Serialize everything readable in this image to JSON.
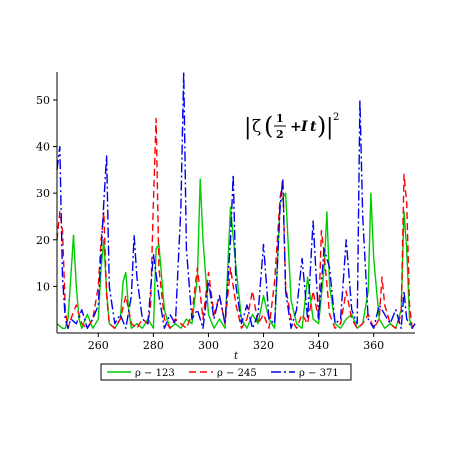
{
  "chart_data": {
    "type": "line",
    "title": "",
    "xlabel": "t",
    "ylabel": "",
    "xlim": [
      245,
      375
    ],
    "ylim": [
      0,
      56
    ],
    "xticks": [
      260,
      280,
      300,
      320,
      340,
      360
    ],
    "yticks": [
      10,
      20,
      30,
      40,
      50
    ],
    "tick_labels_x": [
      "260",
      "280",
      "300",
      "320",
      "340",
      "360"
    ],
    "tick_labels_y": [
      "10",
      "20",
      "30",
      "40",
      "50"
    ],
    "grid": false,
    "legend_position": "bottom",
    "annotation": {
      "bar_left": "|",
      "zeta": "ζ",
      "paren_open": "(",
      "numerator": "1",
      "denominator": "2",
      "plus": "+",
      "imag": "I",
      "var": "t",
      "paren_close": ")",
      "bar_right": "|",
      "exponent": "2"
    },
    "series": [
      {
        "name": "ρ − 123",
        "color": "#00cc00",
        "dash": "solid",
        "x": [
          245,
          247,
          248,
          249,
          250,
          251,
          252,
          253,
          254,
          256,
          258,
          260,
          261,
          262,
          263,
          264,
          266,
          268,
          269,
          270,
          271,
          272,
          274,
          276,
          278,
          280,
          281,
          282,
          284,
          286,
          288,
          290,
          292,
          294,
          296,
          297,
          298,
          300,
          302,
          304,
          306,
          308,
          310,
          312,
          314,
          316,
          318,
          320,
          322,
          324,
          326,
          328,
          330,
          332,
          334,
          336,
          338,
          340,
          342,
          343,
          344,
          346,
          348,
          350,
          352,
          354,
          356,
          358,
          359,
          360,
          362,
          364,
          366,
          368,
          370,
          371,
          372,
          373,
          374,
          375
        ],
        "y": [
          2,
          1,
          1,
          3,
          12,
          21,
          10,
          3,
          1,
          4,
          1,
          3,
          14,
          20,
          9,
          2,
          1,
          3,
          11,
          13,
          5,
          1,
          2,
          1,
          3,
          1,
          18,
          19,
          5,
          1,
          2,
          1,
          3,
          2,
          12,
          33,
          20,
          4,
          1,
          3,
          1,
          27,
          14,
          3,
          1,
          4,
          2,
          8,
          3,
          1,
          28,
          30,
          7,
          2,
          1,
          12,
          3,
          2,
          14,
          26,
          10,
          2,
          1,
          3,
          4,
          1,
          2,
          9,
          30,
          16,
          3,
          1,
          2,
          1,
          5,
          26,
          18,
          3,
          1,
          2
        ]
      },
      {
        "name": "ρ − 245",
        "color": "#ff0000",
        "dash": "dashed",
        "x": [
          245,
          246,
          247,
          248,
          249,
          250,
          252,
          254,
          256,
          258,
          260,
          261,
          262,
          263,
          264,
          266,
          268,
          270,
          272,
          274,
          276,
          278,
          279,
          280,
          281,
          282,
          284,
          286,
          288,
          290,
          292,
          294,
          296,
          298,
          300,
          302,
          304,
          306,
          308,
          310,
          312,
          314,
          316,
          318,
          320,
          322,
          324,
          326,
          327,
          328,
          330,
          332,
          334,
          336,
          338,
          340,
          341,
          342,
          344,
          346,
          348,
          350,
          352,
          354,
          356,
          358,
          360,
          362,
          363,
          364,
          366,
          368,
          370,
          371,
          372,
          373,
          374,
          375
        ],
        "y": [
          20,
          26,
          22,
          5,
          1,
          3,
          6,
          2,
          1,
          3,
          10,
          20,
          26,
          8,
          2,
          1,
          3,
          8,
          2,
          1,
          3,
          2,
          6,
          28,
          46,
          14,
          3,
          1,
          3,
          2,
          1,
          4,
          14,
          3,
          13,
          4,
          8,
          2,
          14,
          6,
          1,
          3,
          9,
          2,
          4,
          1,
          11,
          29,
          33,
          10,
          3,
          1,
          4,
          2,
          9,
          3,
          22,
          17,
          4,
          1,
          2,
          9,
          3,
          1,
          2,
          4,
          1,
          3,
          12,
          6,
          2,
          1,
          4,
          34,
          28,
          6,
          1,
          2
        ]
      },
      {
        "name": "ρ − 371",
        "color": "#0000ee",
        "dash": "dashdot",
        "x": [
          245,
          246,
          247,
          248,
          249,
          250,
          252,
          254,
          256,
          258,
          260,
          262,
          263,
          264,
          266,
          268,
          270,
          272,
          273,
          274,
          276,
          278,
          280,
          282,
          284,
          286,
          288,
          290,
          291,
          292,
          294,
          296,
          298,
          300,
          302,
          304,
          306,
          308,
          309,
          310,
          312,
          314,
          316,
          318,
          320,
          322,
          324,
          326,
          327,
          328,
          330,
          332,
          334,
          336,
          338,
          340,
          342,
          344,
          346,
          348,
          350,
          352,
          354,
          355,
          356,
          358,
          360,
          362,
          364,
          366,
          368,
          370,
          371,
          372,
          374,
          375
        ],
        "y": [
          35,
          40,
          12,
          3,
          1,
          3,
          2,
          5,
          1,
          3,
          6,
          28,
          38,
          10,
          2,
          4,
          1,
          8,
          21,
          12,
          3,
          2,
          17,
          8,
          1,
          4,
          2,
          27,
          56,
          18,
          3,
          5,
          1,
          11,
          3,
          8,
          2,
          20,
          34,
          10,
          2,
          6,
          1,
          4,
          19,
          3,
          2,
          27,
          33,
          9,
          1,
          5,
          16,
          3,
          24,
          3,
          18,
          14,
          2,
          3,
          20,
          5,
          2,
          50,
          25,
          3,
          1,
          6,
          4,
          2,
          5,
          1,
          9,
          3,
          1,
          2
        ]
      }
    ]
  }
}
